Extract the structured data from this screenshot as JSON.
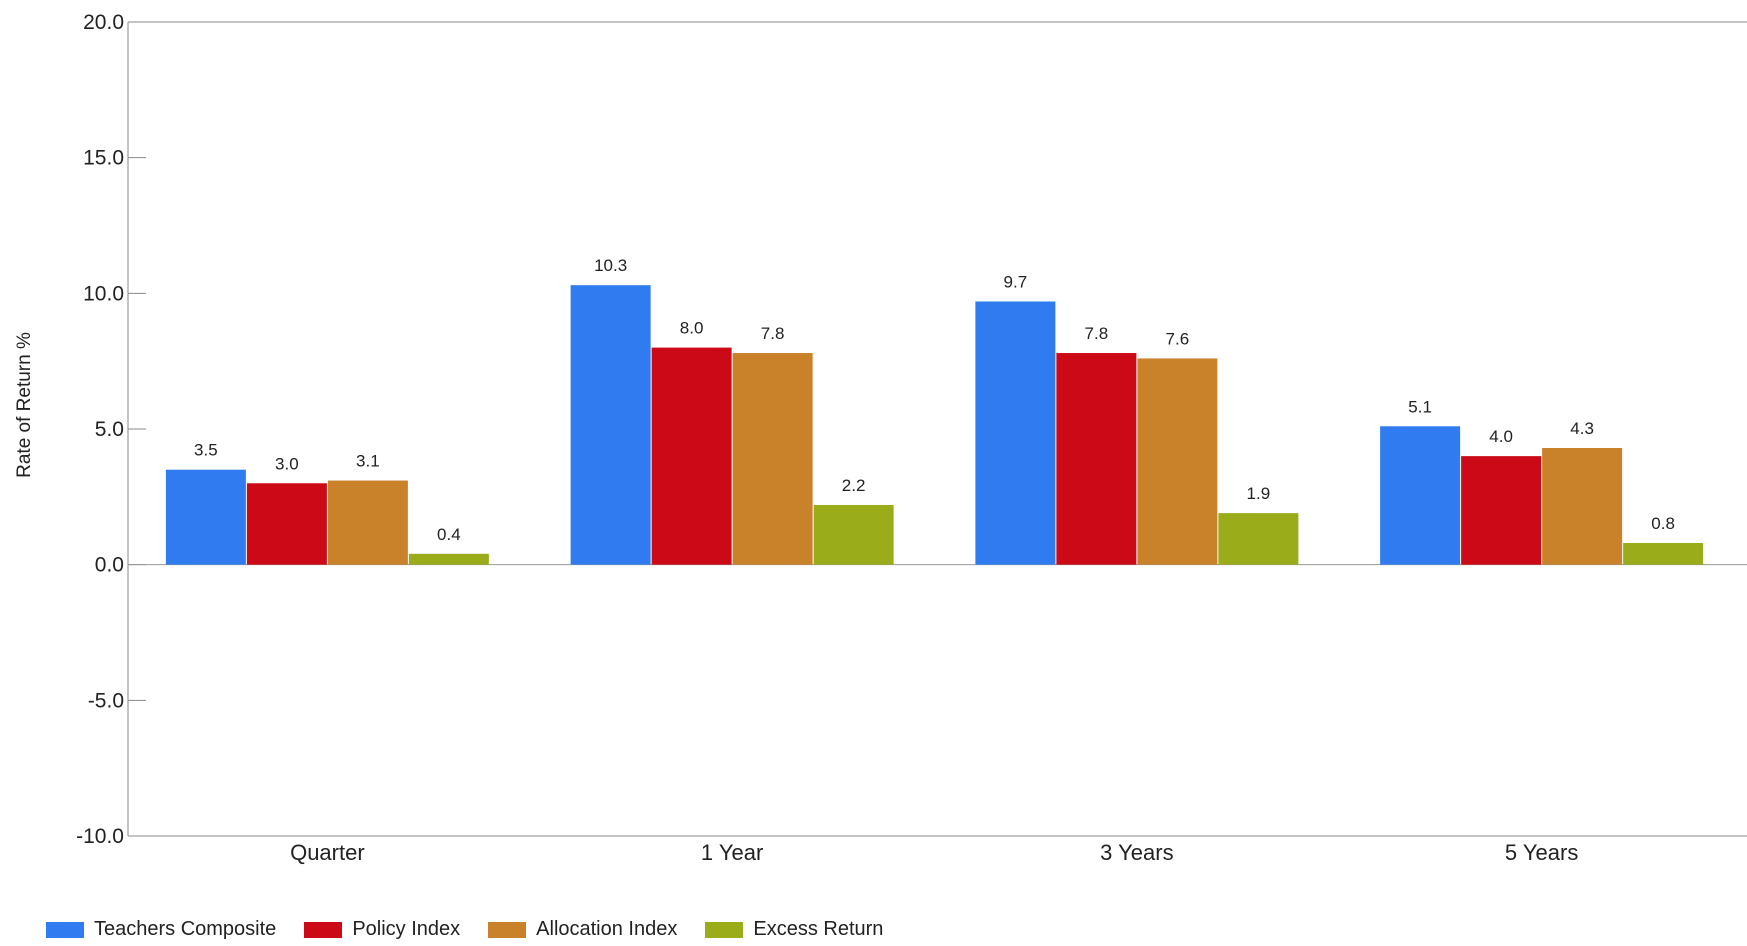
{
  "chart_data": {
    "type": "bar",
    "title": "",
    "xlabel": "",
    "ylabel": "Rate of Return %",
    "ylim": [
      -10,
      20
    ],
    "yticks": [
      "20.0",
      "15.0",
      "10.0",
      "5.0",
      "0.0",
      "-5.0",
      "-10.0"
    ],
    "categories": [
      "Quarter",
      "1 Year",
      "3 Years",
      "5 Years"
    ],
    "series": [
      {
        "name": "Teachers Composite",
        "color": "#2f7bef",
        "values": [
          3.5,
          10.3,
          9.7,
          5.1
        ],
        "labels": [
          "3.5",
          "10.3",
          "9.7",
          "5.1"
        ]
      },
      {
        "name": "Policy Index",
        "color": "#cc0a17",
        "values": [
          3.0,
          8.0,
          7.8,
          4.0
        ],
        "labels": [
          "3.0",
          "8.0",
          "7.8",
          "4.0"
        ]
      },
      {
        "name": "Allocation Index",
        "color": "#c9812a",
        "values": [
          3.1,
          7.8,
          7.6,
          4.3
        ],
        "labels": [
          "3.1",
          "7.8",
          "7.6",
          "4.3"
        ]
      },
      {
        "name": "Excess Return",
        "color": "#9aac1a",
        "values": [
          0.4,
          2.2,
          1.9,
          0.8
        ],
        "labels": [
          "0.4",
          "2.2",
          "1.9",
          "0.8"
        ]
      }
    ],
    "legend_position": "bottom-left",
    "grid": false
  }
}
